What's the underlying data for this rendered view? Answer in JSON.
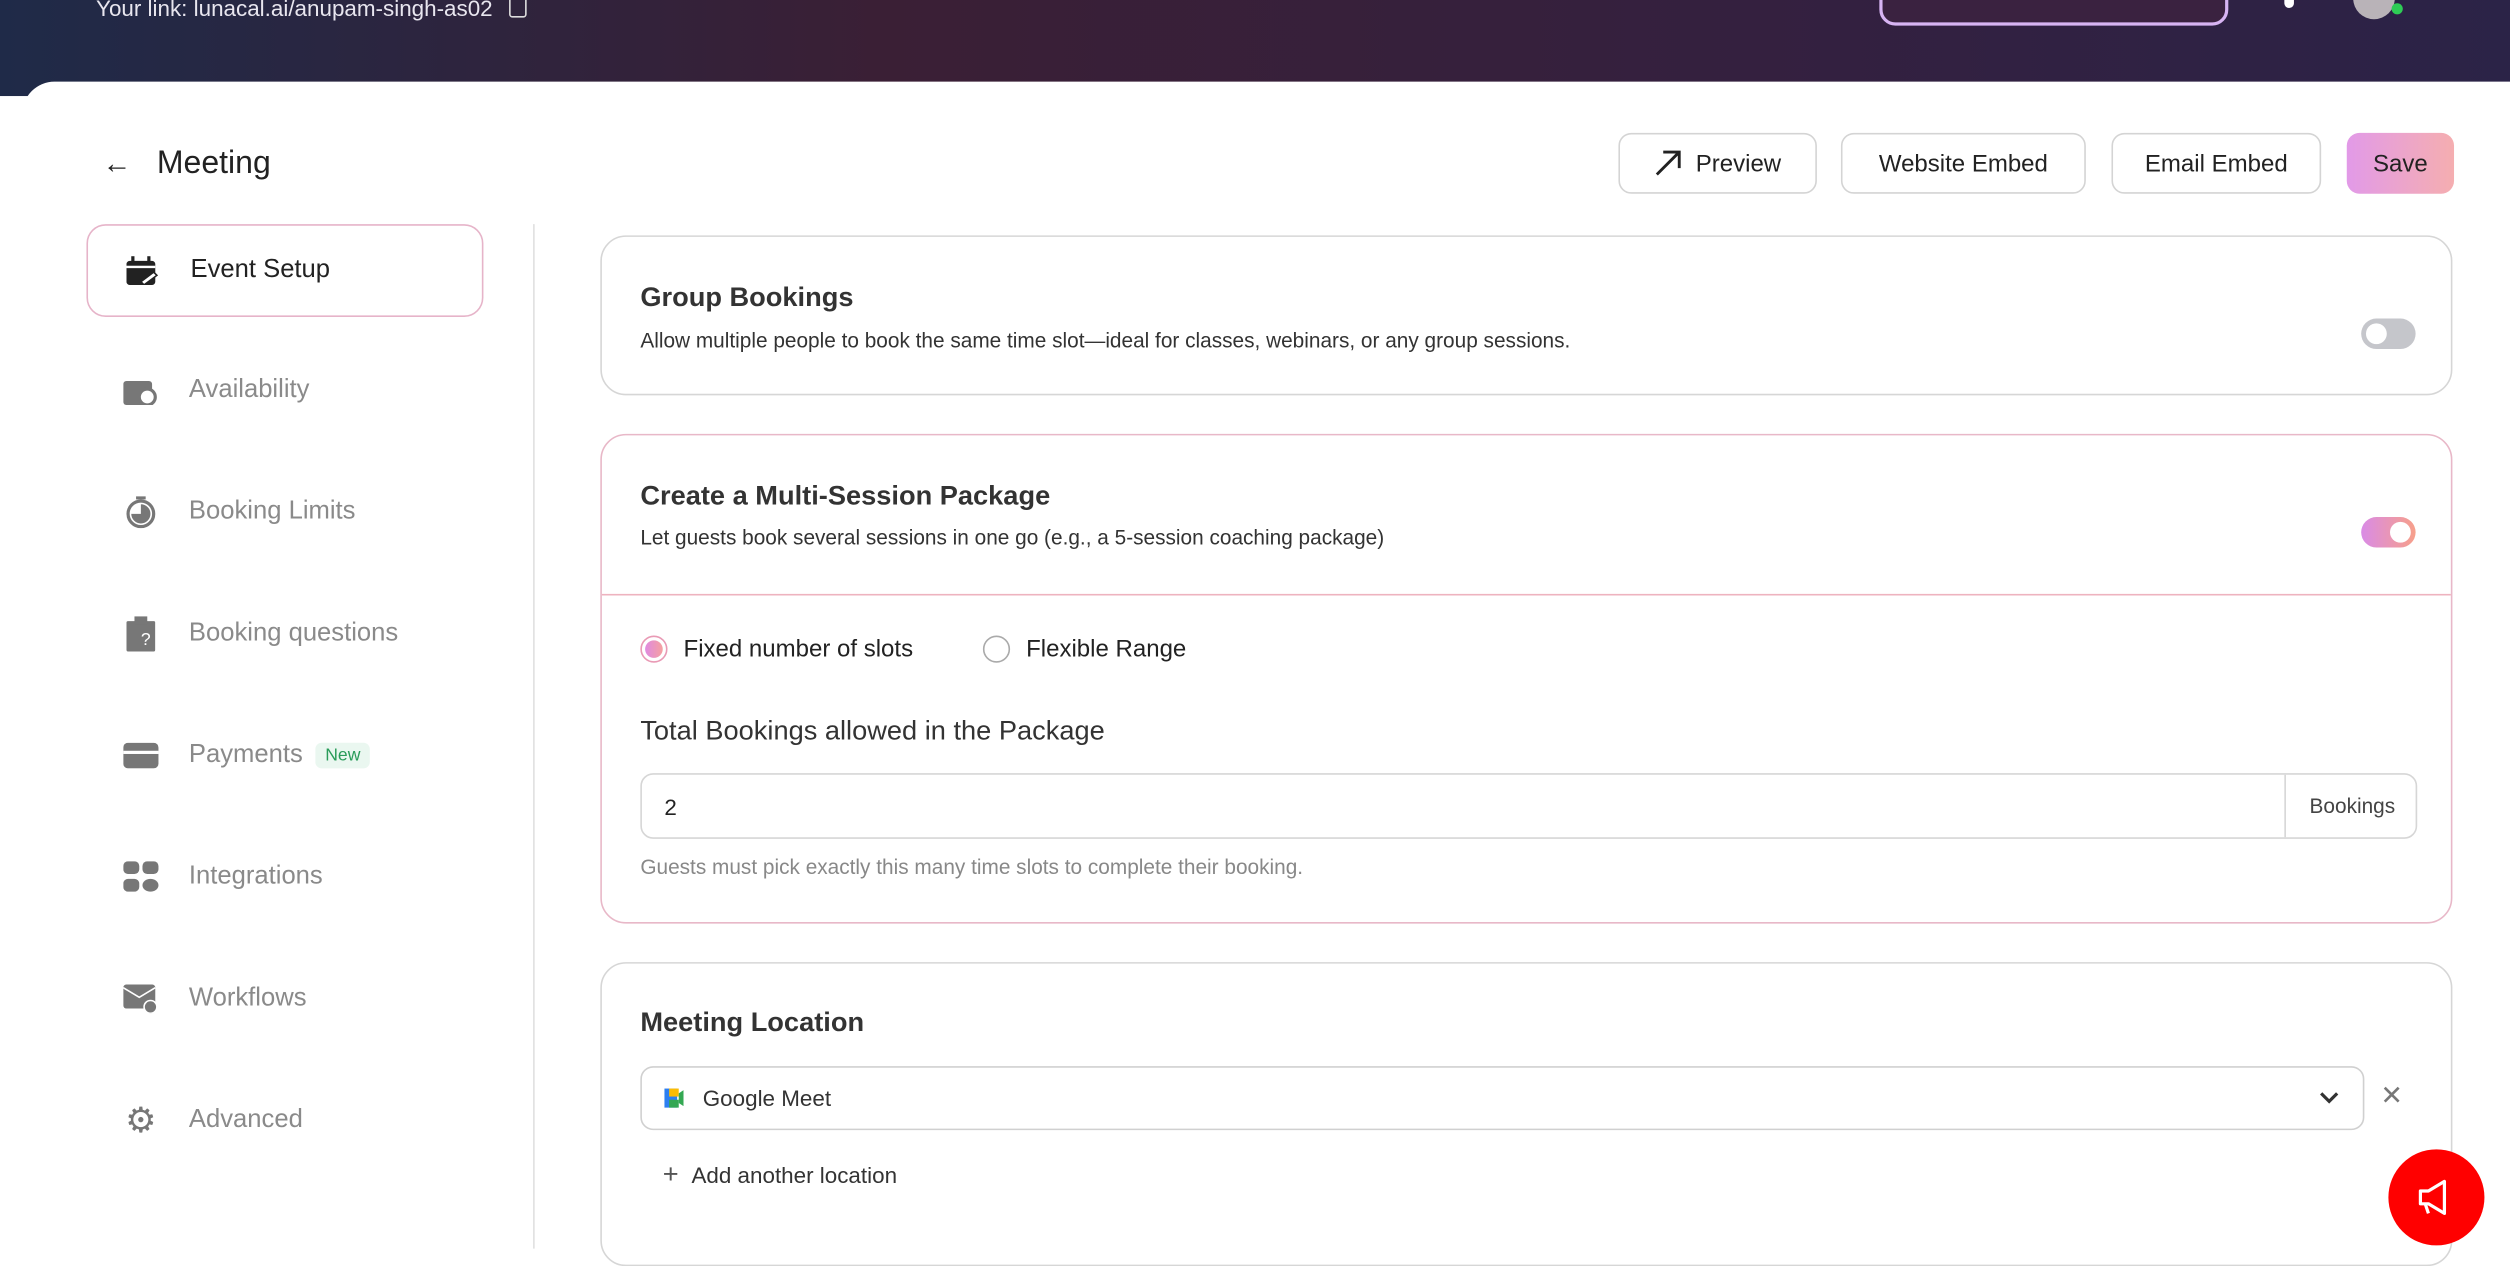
{
  "topbar": {
    "link_label": "Your link: lunacal.ai/anupam-singh-as02",
    "copy_icon": "copy-icon"
  },
  "header": {
    "title": "Meeting",
    "back_icon": "arrow-left-icon",
    "buttons": {
      "preview": "Preview",
      "website_embed": "Website Embed",
      "email_embed": "Email Embed",
      "save": "Save"
    }
  },
  "sidebar": {
    "items": [
      {
        "label": "Event Setup",
        "icon": "calendar-edit-icon",
        "active": true
      },
      {
        "label": "Availability",
        "icon": "calendar-clock-icon"
      },
      {
        "label": "Booking Limits",
        "icon": "timer-icon"
      },
      {
        "label": "Booking questions",
        "icon": "clipboard-question-icon"
      },
      {
        "label": "Payments",
        "icon": "credit-card-icon",
        "badge": "New"
      },
      {
        "label": "Integrations",
        "icon": "grid-icon"
      },
      {
        "label": "Workflows",
        "icon": "mail-bell-icon"
      },
      {
        "label": "Advanced",
        "icon": "gear-icon"
      }
    ]
  },
  "group_bookings": {
    "title": "Group Bookings",
    "description": "Allow multiple people to book the same time slot—ideal for classes, webinars, or any group sessions.",
    "enabled": false
  },
  "multi_session": {
    "title": "Create a Multi-Session Package",
    "description": "Let guests book several sessions in one go (e.g., a 5-session coaching package)",
    "enabled": true,
    "options": [
      {
        "label": "Fixed number of slots",
        "selected": true
      },
      {
        "label": "Flexible Range",
        "selected": false
      }
    ],
    "total_label": "Total Bookings allowed in the Package",
    "total_value": "2",
    "total_suffix": "Bookings",
    "help": "Guests must pick exactly this many time slots to complete their booking."
  },
  "location": {
    "title": "Meeting Location",
    "selected": "Google Meet",
    "add_label": "Add another location"
  },
  "colors": {
    "accent_start": "#e29ae8",
    "accent_end": "#f5aeb0",
    "fab": "#ff0000"
  }
}
